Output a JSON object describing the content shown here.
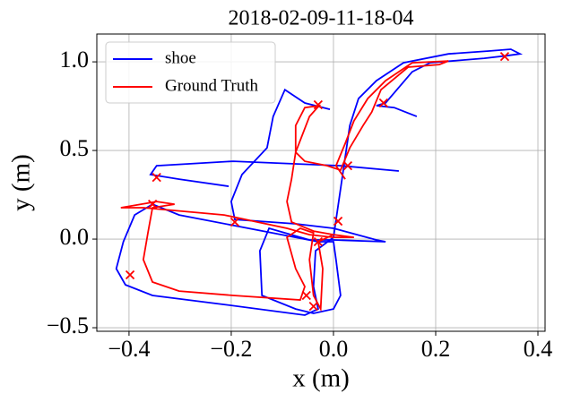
{
  "chart_data": {
    "type": "line",
    "title": "2018-02-09-11-18-04",
    "xlabel": "x (m)",
    "ylabel": "y (m)",
    "xlim": [
      -0.463,
      0.414
    ],
    "ylim": [
      -0.52,
      1.157
    ],
    "xticks": [
      {
        "value": -0.4,
        "label": "−0.4"
      },
      {
        "value": -0.2,
        "label": "−0.2"
      },
      {
        "value": 0,
        "label": "0.0"
      },
      0.2,
      0.4
    ],
    "yticks": [
      {
        "value": -0.5,
        "label": "−0.5"
      },
      {
        "value": 0,
        "label": "0.0"
      },
      0.5,
      {
        "value": 1,
        "label": "1.0"
      }
    ],
    "grid": true,
    "legend": "upper left",
    "series": [
      {
        "name": "shoe",
        "color": "#0000ff",
        "x": [
          -0.007,
          -0.056,
          -0.095,
          -0.118,
          -0.13,
          -0.179,
          -0.2,
          -0.193,
          -0.074,
          0,
          0.084,
          0.102,
          0,
          -0.047,
          -0.126,
          -0.144,
          -0.14,
          -0.074,
          -0.039,
          0,
          0.014,
          0.005,
          0,
          -0.03,
          -0.302,
          -0.354,
          -0.389,
          -0.411,
          -0.425,
          -0.407,
          -0.354,
          -0.214,
          -0.056,
          -0.03,
          -0.039,
          -0.035,
          0,
          0.032,
          0.049,
          0.084,
          0.137,
          0.225,
          0.304,
          0.347,
          0.365,
          0.339,
          0.295,
          0.189,
          0.154,
          0.102,
          0.084,
          0.119,
          0.163,
          null,
          0.128,
          0.014,
          -0.196,
          -0.346,
          -0.358,
          -0.302,
          -0.205
        ],
        "values": [
          0.732,
          0.768,
          0.843,
          0.692,
          0.515,
          0.364,
          0.212,
          0.111,
          0.086,
          0.061,
          -0.005,
          -0.015,
          -0.005,
          -0.005,
          0.061,
          -0.066,
          -0.318,
          -0.394,
          -0.419,
          -0.394,
          -0.318,
          -0.116,
          -0.015,
          -0.015,
          0.136,
          0.197,
          0.136,
          -0.015,
          -0.167,
          -0.258,
          -0.318,
          -0.369,
          -0.429,
          -0.394,
          -0.268,
          -0.066,
          0.01,
          0.641,
          0.793,
          0.894,
          0.995,
          1.045,
          1.061,
          1.071,
          1.045,
          1.035,
          1.02,
          0.995,
          0.944,
          0.768,
          0.753,
          0.742,
          0.692,
          null,
          0.384,
          0.414,
          0.439,
          0.414,
          0.364,
          0.338,
          0.298
        ]
      },
      {
        "name": "Ground Truth",
        "color": "#ff0000",
        "x": [
          0.023,
          0.005,
          0.023,
          0.04,
          0.067,
          0.102,
          0.154,
          0.225,
          0.207,
          0.146,
          0.093,
          0.075,
          0.058,
          0.032,
          0.014,
          -0.012,
          -0.056,
          -0.074,
          -0.074,
          -0.056,
          -0.028,
          -0.047,
          -0.074,
          -0.082,
          -0.091,
          -0.082,
          -0.039,
          0,
          0.04,
          0,
          -0.047,
          -0.091,
          -0.214,
          -0.372,
          -0.416,
          -0.346,
          -0.311,
          -0.354,
          -0.363,
          -0.372,
          -0.354,
          -0.302,
          -0.196,
          -0.065,
          -0.056,
          -0.074,
          -0.091,
          -0.065,
          -0.039,
          -0.047,
          -0.039,
          -0.025,
          -0.021,
          -0.03,
          0
        ],
        "values": [
          0.338,
          0.414,
          0.54,
          0.667,
          0.793,
          0.894,
          0.995,
          1.005,
          0.985,
          0.97,
          0.843,
          0.717,
          0.641,
          0.515,
          0.389,
          0.414,
          0.439,
          0.49,
          0.641,
          0.742,
          0.753,
          0.692,
          0.49,
          0.338,
          0.212,
          0.096,
          0.045,
          0.025,
          0.01,
          0.01,
          0.025,
          0.061,
          0.136,
          0.177,
          0.177,
          0.212,
          0.197,
          0.177,
          0.035,
          -0.116,
          -0.242,
          -0.293,
          -0.318,
          -0.343,
          -0.268,
          -0.167,
          0.01,
          0.061,
          0.035,
          -0.116,
          -0.318,
          -0.394,
          -0.167,
          -0.015,
          0.025
        ],
        "markers": {
          "x": [
            0.335,
            -0.03,
            0.098,
            0.028,
            -0.346,
            -0.193,
            -0.354,
            0.009,
            -0.398,
            -0.053,
            -0.039,
            -0.03
          ],
          "y": [
            1.03,
            0.758,
            0.768,
            0.414,
            0.348,
            0.096,
            0.197,
            0.101,
            -0.202,
            -0.318,
            -0.379,
            -0.015
          ]
        }
      }
    ]
  }
}
